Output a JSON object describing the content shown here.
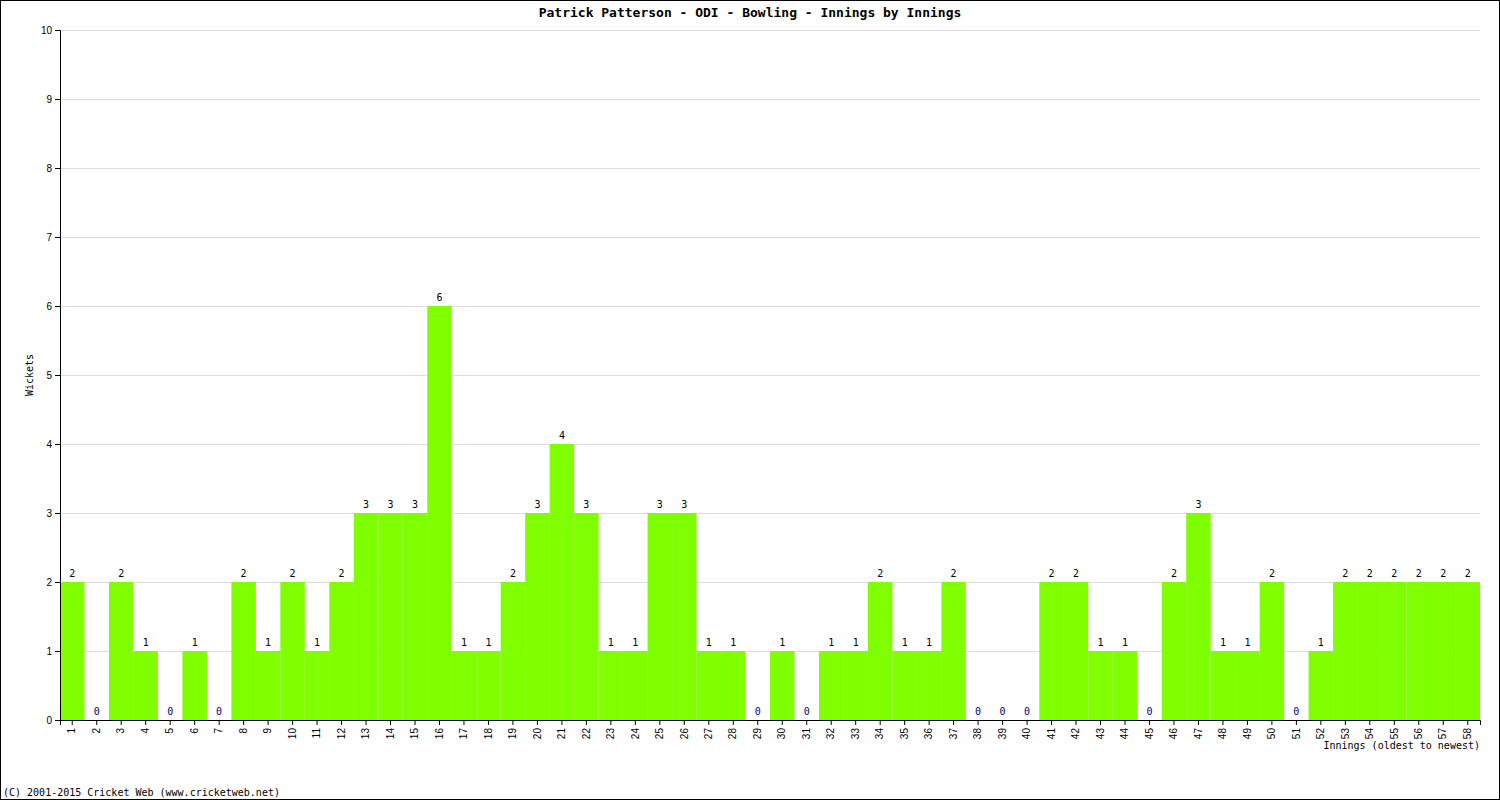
{
  "chart_data": {
    "type": "bar",
    "title": "Patrick Patterson - ODI - Bowling - Innings by Innings",
    "y_label": "Wickets",
    "x_label": "Innings (oldest to newest)",
    "footer": "(C) 2001-2015 Cricket Web (www.cricketweb.net)",
    "categories": [
      "1",
      "2",
      "3",
      "4",
      "5",
      "6",
      "7",
      "8",
      "9",
      "10",
      "11",
      "12",
      "13",
      "14",
      "15",
      "16",
      "17",
      "18",
      "19",
      "20",
      "21",
      "22",
      "23",
      "24",
      "25",
      "26",
      "27",
      "28",
      "29",
      "30",
      "31",
      "32",
      "33",
      "34",
      "35",
      "36",
      "37",
      "38",
      "39",
      "40",
      "41",
      "42",
      "43",
      "44",
      "45",
      "46",
      "47",
      "48",
      "49",
      "50",
      "51",
      "52",
      "53",
      "54",
      "55",
      "56",
      "57",
      "58"
    ],
    "values": [
      2,
      0,
      2,
      1,
      0,
      1,
      0,
      2,
      1,
      2,
      1,
      2,
      3,
      3,
      3,
      6,
      1,
      1,
      2,
      3,
      4,
      3,
      1,
      1,
      3,
      3,
      1,
      1,
      0,
      1,
      0,
      1,
      1,
      2,
      1,
      1,
      2,
      0,
      0,
      0,
      2,
      2,
      1,
      1,
      0,
      2,
      3,
      1,
      1,
      2,
      0,
      1,
      2,
      2,
      2,
      2,
      2,
      2
    ],
    "color": "#7fff00",
    "ylim": [
      0,
      10
    ],
    "yticks": [
      0,
      1,
      2,
      3,
      4,
      5,
      6,
      7,
      8,
      9,
      10
    ],
    "grid": true,
    "data_labels": true
  }
}
